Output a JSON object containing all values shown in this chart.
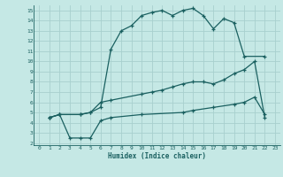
{
  "xlabel": "Humidex (Indice chaleur)",
  "bg_color": "#c5e8e5",
  "grid_color": "#a8d0ce",
  "line_color": "#1a6060",
  "xlim": [
    -0.5,
    23.5
  ],
  "ylim": [
    1.8,
    15.5
  ],
  "xticks": [
    0,
    1,
    2,
    3,
    4,
    5,
    6,
    7,
    8,
    9,
    10,
    11,
    12,
    13,
    14,
    15,
    16,
    17,
    18,
    19,
    20,
    21,
    22,
    23
  ],
  "yticks": [
    2,
    3,
    4,
    5,
    6,
    7,
    8,
    9,
    10,
    11,
    12,
    13,
    14,
    15
  ],
  "line1_x": [
    1,
    2,
    4,
    5,
    6,
    7,
    8,
    9,
    10,
    11,
    12,
    13,
    14,
    15,
    16,
    17,
    18,
    19,
    20,
    22
  ],
  "line1_y": [
    4.5,
    4.8,
    4.8,
    5.0,
    5.5,
    11.2,
    13.0,
    13.5,
    14.5,
    14.8,
    15.0,
    14.5,
    15.0,
    15.2,
    14.5,
    13.2,
    14.2,
    13.8,
    10.5,
    10.5
  ],
  "line2_x": [
    1,
    2,
    4,
    5,
    6,
    7,
    10,
    11,
    12,
    13,
    14,
    15,
    16,
    17,
    18,
    19,
    20,
    21,
    22
  ],
  "line2_y": [
    4.5,
    4.8,
    4.8,
    5.0,
    6.0,
    6.2,
    6.8,
    7.0,
    7.2,
    7.5,
    7.8,
    8.0,
    8.0,
    7.8,
    8.2,
    8.8,
    9.2,
    10.0,
    4.5
  ],
  "line3_x": [
    1,
    2,
    3,
    4,
    5,
    6,
    7,
    10,
    14,
    15,
    17,
    19,
    20,
    21,
    22
  ],
  "line3_y": [
    4.5,
    4.8,
    2.5,
    2.5,
    2.5,
    4.2,
    4.5,
    4.8,
    5.0,
    5.2,
    5.5,
    5.8,
    6.0,
    6.5,
    4.8
  ]
}
